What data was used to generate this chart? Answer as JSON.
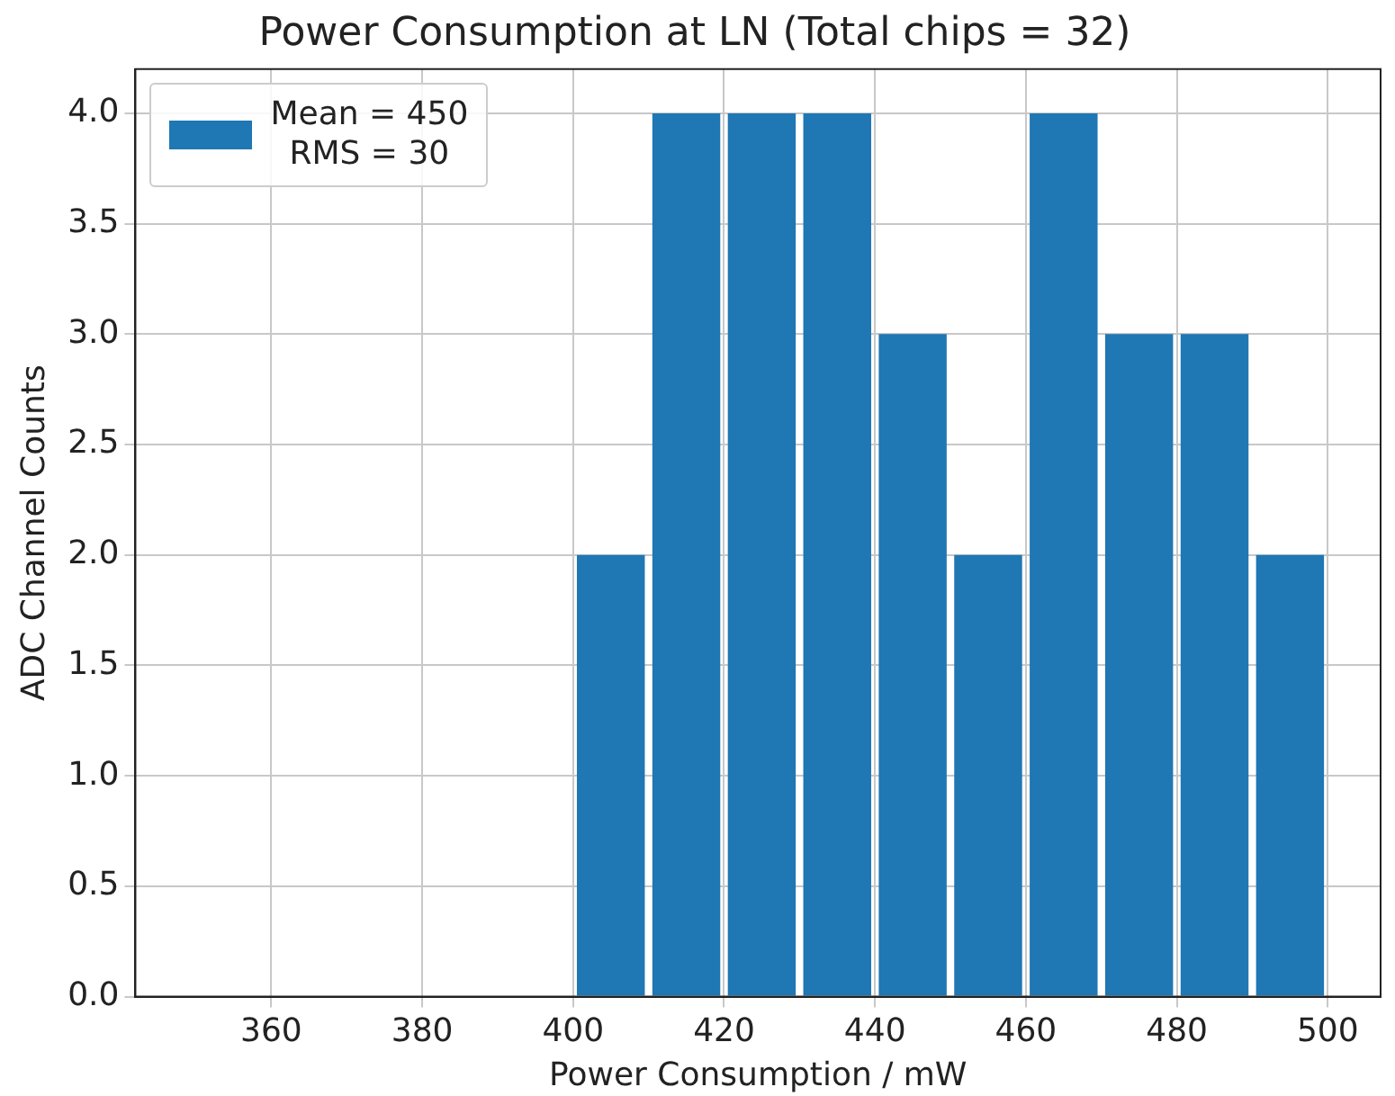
{
  "chart_data": {
    "type": "histogram",
    "title": "Power Consumption at LN (Total chips = 32)",
    "xlabel": "Power Consumption / mW",
    "ylabel": "ADC Channel Counts",
    "bins": [
      400,
      410,
      420,
      430,
      440,
      450,
      460,
      470,
      480,
      490,
      500
    ],
    "series": [
      {
        "name": "Mean = 450\nRMS = 30",
        "color": "#1f77b4",
        "values": [
          2,
          4,
          4,
          4,
          3,
          2,
          4,
          3,
          3,
          2
        ]
      }
    ],
    "xlim": [
      342,
      507
    ],
    "xticks": [
      360,
      380,
      400,
      420,
      440,
      460,
      480,
      500
    ],
    "ylim": [
      0,
      4.2
    ],
    "yticks": [
      {
        "value": 0,
        "label": "0.0"
      },
      {
        "value": 0.5,
        "label": "0.5"
      },
      {
        "value": 1,
        "label": "1.0"
      },
      {
        "value": 1.5,
        "label": "1.5"
      },
      {
        "value": 2,
        "label": "2.0"
      },
      {
        "value": 2.5,
        "label": "2.5"
      },
      {
        "value": 3,
        "label": "3.0"
      },
      {
        "value": 3.5,
        "label": "3.5"
      },
      {
        "value": 4,
        "label": "4.0"
      }
    ],
    "grid": true,
    "legend": "top left"
  }
}
